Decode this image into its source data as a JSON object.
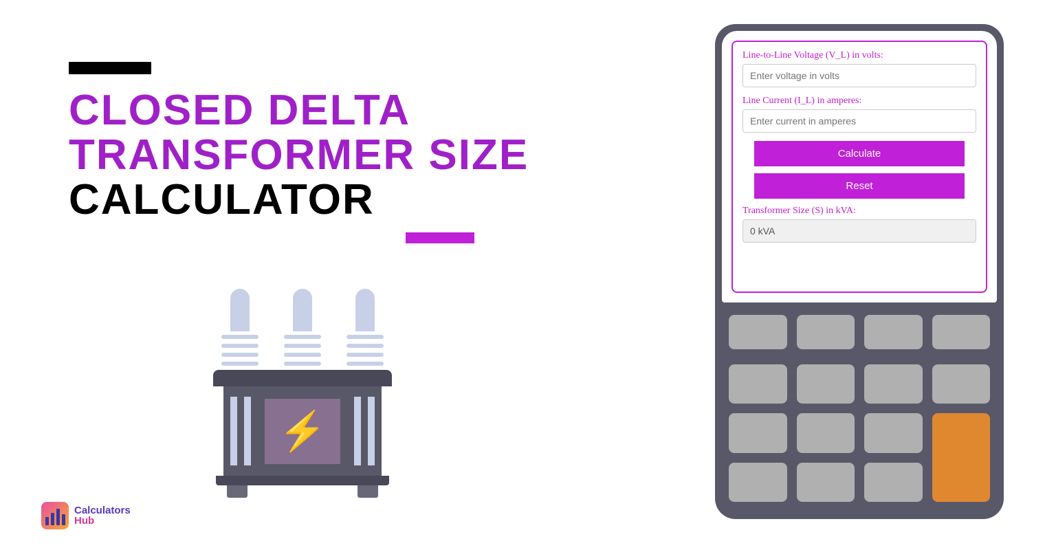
{
  "title": {
    "line1": "CLOSED DELTA",
    "line2": "TRANSFORMER SIZE",
    "line3": "CALCULATOR",
    "purple_color": "#a020c8",
    "black_color": "#000000",
    "accent_bar_color": "#c020d8"
  },
  "calculator": {
    "voltage_label": "Line-to-Line Voltage (V_L) in volts:",
    "voltage_placeholder": "Enter voltage in volts",
    "current_label": "Line Current (I_L) in amperes:",
    "current_placeholder": "Enter current in amperes",
    "calculate_button": "Calculate",
    "reset_button": "Reset",
    "result_label": "Transformer Size (S) in kVA:",
    "result_value": "0 kVA",
    "border_color": "#c020d8",
    "label_color": "#c020c8",
    "button_bg": "#c020d8"
  },
  "device": {
    "body_color": "#585868",
    "key_color": "#b0b0b0",
    "key_accent_color": "#e08830"
  },
  "transformer": {
    "body_color": "#585868",
    "bushing_color": "#c8d0e8",
    "screen_color": "#887090",
    "bolt_color": "#f8b820"
  },
  "logo": {
    "text_top": "Calculators",
    "text_bottom": "Hub"
  }
}
